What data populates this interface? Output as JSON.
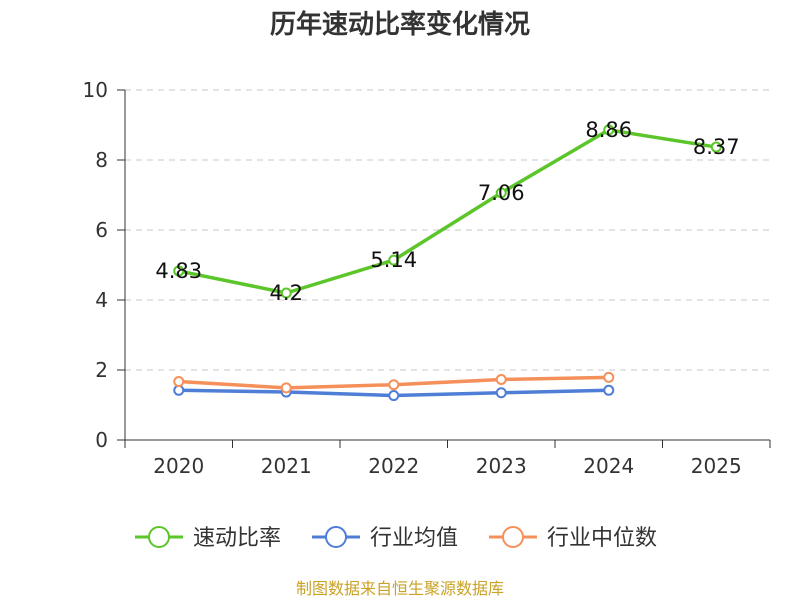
{
  "chart_data": {
    "type": "line",
    "title": "历年速动比率变化情况",
    "categories": [
      "2020",
      "2021",
      "2022",
      "2023",
      "2024",
      "2025"
    ],
    "y_ticks": [
      "0",
      "2",
      "4",
      "6",
      "8",
      "10"
    ],
    "ylim": [
      0,
      10
    ],
    "grid": true,
    "series": [
      {
        "name": "速动比率",
        "color": "#5bc52a",
        "values": [
          4.83,
          4.2,
          5.14,
          7.06,
          8.86,
          8.37
        ],
        "labels": [
          "4.83",
          "4.2",
          "5.14",
          "7.06",
          "8.86",
          "8.37"
        ]
      },
      {
        "name": "行业均值",
        "color": "#4f7ed6",
        "values": [
          1.42,
          1.37,
          1.27,
          1.35,
          1.42,
          null
        ]
      },
      {
        "name": "行业中位数",
        "color": "#f5905a",
        "values": [
          1.67,
          1.49,
          1.58,
          1.73,
          1.79,
          null
        ]
      }
    ],
    "legend_position": "bottom-center"
  },
  "source_note": "制图数据来自恒生聚源数据库"
}
